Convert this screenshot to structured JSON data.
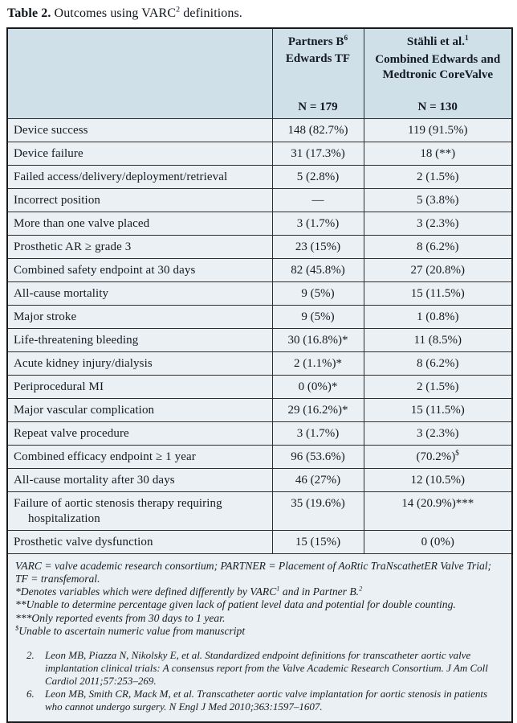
{
  "colors": {
    "body_cell_bg": "#eaf0f3",
    "header_cell_bg": "#cfe0e9",
    "border": "#1a1a1a",
    "text": "#151b23"
  },
  "title": {
    "bold": "Table 2.",
    "rest": [
      {
        "t": " Outcomes using VARC"
      },
      {
        "t": "2",
        "sup": true
      },
      {
        "t": " definitions."
      }
    ]
  },
  "table": {
    "header": {
      "col_partners": {
        "line1": [
          {
            "t": "Partners B"
          },
          {
            "t": "6",
            "sup": true
          }
        ],
        "line2": "Edwards TF",
        "n": "N = 179"
      },
      "col_stahli": {
        "line1": [
          {
            "t": "Stähli et al."
          },
          {
            "t": "1",
            "sup": true
          }
        ],
        "line2": "Combined Edwards and Medtronic CoreValve",
        "n": "N = 130"
      }
    },
    "rows": [
      {
        "label": "Device success",
        "partners": "148 (82.7%)",
        "stahli": "119 (91.5%)"
      },
      {
        "label": "Device failure",
        "partners": "31 (17.3%)",
        "stahli": "18 (**)"
      },
      {
        "label": "Failed access/delivery/deployment/retrieval",
        "partners": "5 (2.8%)",
        "stahli": "2 (1.5%)"
      },
      {
        "label": "Incorrect position",
        "partners": "—",
        "stahli": "5 (3.8%)"
      },
      {
        "label": "More than one valve placed",
        "partners": "3 (1.7%)",
        "stahli": "3 (2.3%)"
      },
      {
        "label": "Prosthetic AR ≥ grade 3",
        "partners": "23 (15%)",
        "stahli": "8 (6.2%)"
      },
      {
        "label": "Combined safety endpoint at 30 days",
        "partners": "82 (45.8%)",
        "stahli": "27 (20.8%)"
      },
      {
        "label": "All-cause mortality",
        "partners": "9 (5%)",
        "stahli": "15 (11.5%)"
      },
      {
        "label": "Major stroke",
        "partners": "9 (5%)",
        "stahli": "1 (0.8%)"
      },
      {
        "label": "Life-threatening bleeding",
        "partners": "30 (16.8%)*",
        "stahli": "11 (8.5%)"
      },
      {
        "label": "Acute kidney injury/dialysis",
        "partners": "2 (1.1%)*",
        "stahli": "8 (6.2%)"
      },
      {
        "label": "Periprocedural MI",
        "partners": "0 (0%)*",
        "stahli": "2 (1.5%)"
      },
      {
        "label": "Major vascular complication",
        "partners": "29 (16.2%)*",
        "stahli": "15 (11.5%)"
      },
      {
        "label": "Repeat valve procedure",
        "partners": "3 (1.7%)",
        "stahli": "3 (2.3%)"
      },
      {
        "label": "Combined efficacy endpoint ≥ 1 year",
        "partners": "96 (53.6%)",
        "stahli": "(70.2%)",
        "stahli_sup": "$"
      },
      {
        "label": "All-cause mortality after 30 days",
        "partners": "46 (27%)",
        "stahli": "12 (10.5%)"
      },
      {
        "label": "Failure of aortic stenosis therapy requiring hospitalization",
        "partners": "35 (19.6%)",
        "stahli": "14 (20.9%)***"
      },
      {
        "label": "Prosthetic valve dysfunction",
        "partners": "15 (15%)",
        "stahli": "0 (0%)"
      }
    ]
  },
  "footnotes": [
    [
      {
        "t": "VARC = valve academic research consortium; PARTNER = Placement of AoRtic TraNscathetER Valve Trial; TF = transfemoral."
      }
    ],
    [
      {
        "t": "*Denotes variables which were defined differently by VARC"
      },
      {
        "t": "1",
        "sup": true
      },
      {
        "t": " and in Partner B."
      },
      {
        "t": "2",
        "sup": true
      }
    ],
    [
      {
        "t": "**Unable to determine percentage given lack of patient level data and potential for double counting."
      }
    ],
    [
      {
        "t": "***Only reported events from 30 days to 1 year."
      }
    ],
    [
      {
        "t": "$",
        "sup": true
      },
      {
        "t": "Unable to ascertain numeric value from manuscript"
      }
    ]
  ],
  "references": [
    {
      "num": "2.",
      "text": "Leon MB, Piazza N, Nikolsky E, et al. Standardized endpoint definitions for transcatheter aortic valve implantation clinical trials: A consensus report from the Valve Academic Research Consortium. J Am Coll Cardiol 2011;57:253–269."
    },
    {
      "num": "6.",
      "text": "Leon MB, Smith CR, Mack M, et al. Transcatheter aortic valve implantation for aortic stenosis in patients who cannot undergo surgery. N Engl J Med 2010;363:1597–1607."
    }
  ]
}
